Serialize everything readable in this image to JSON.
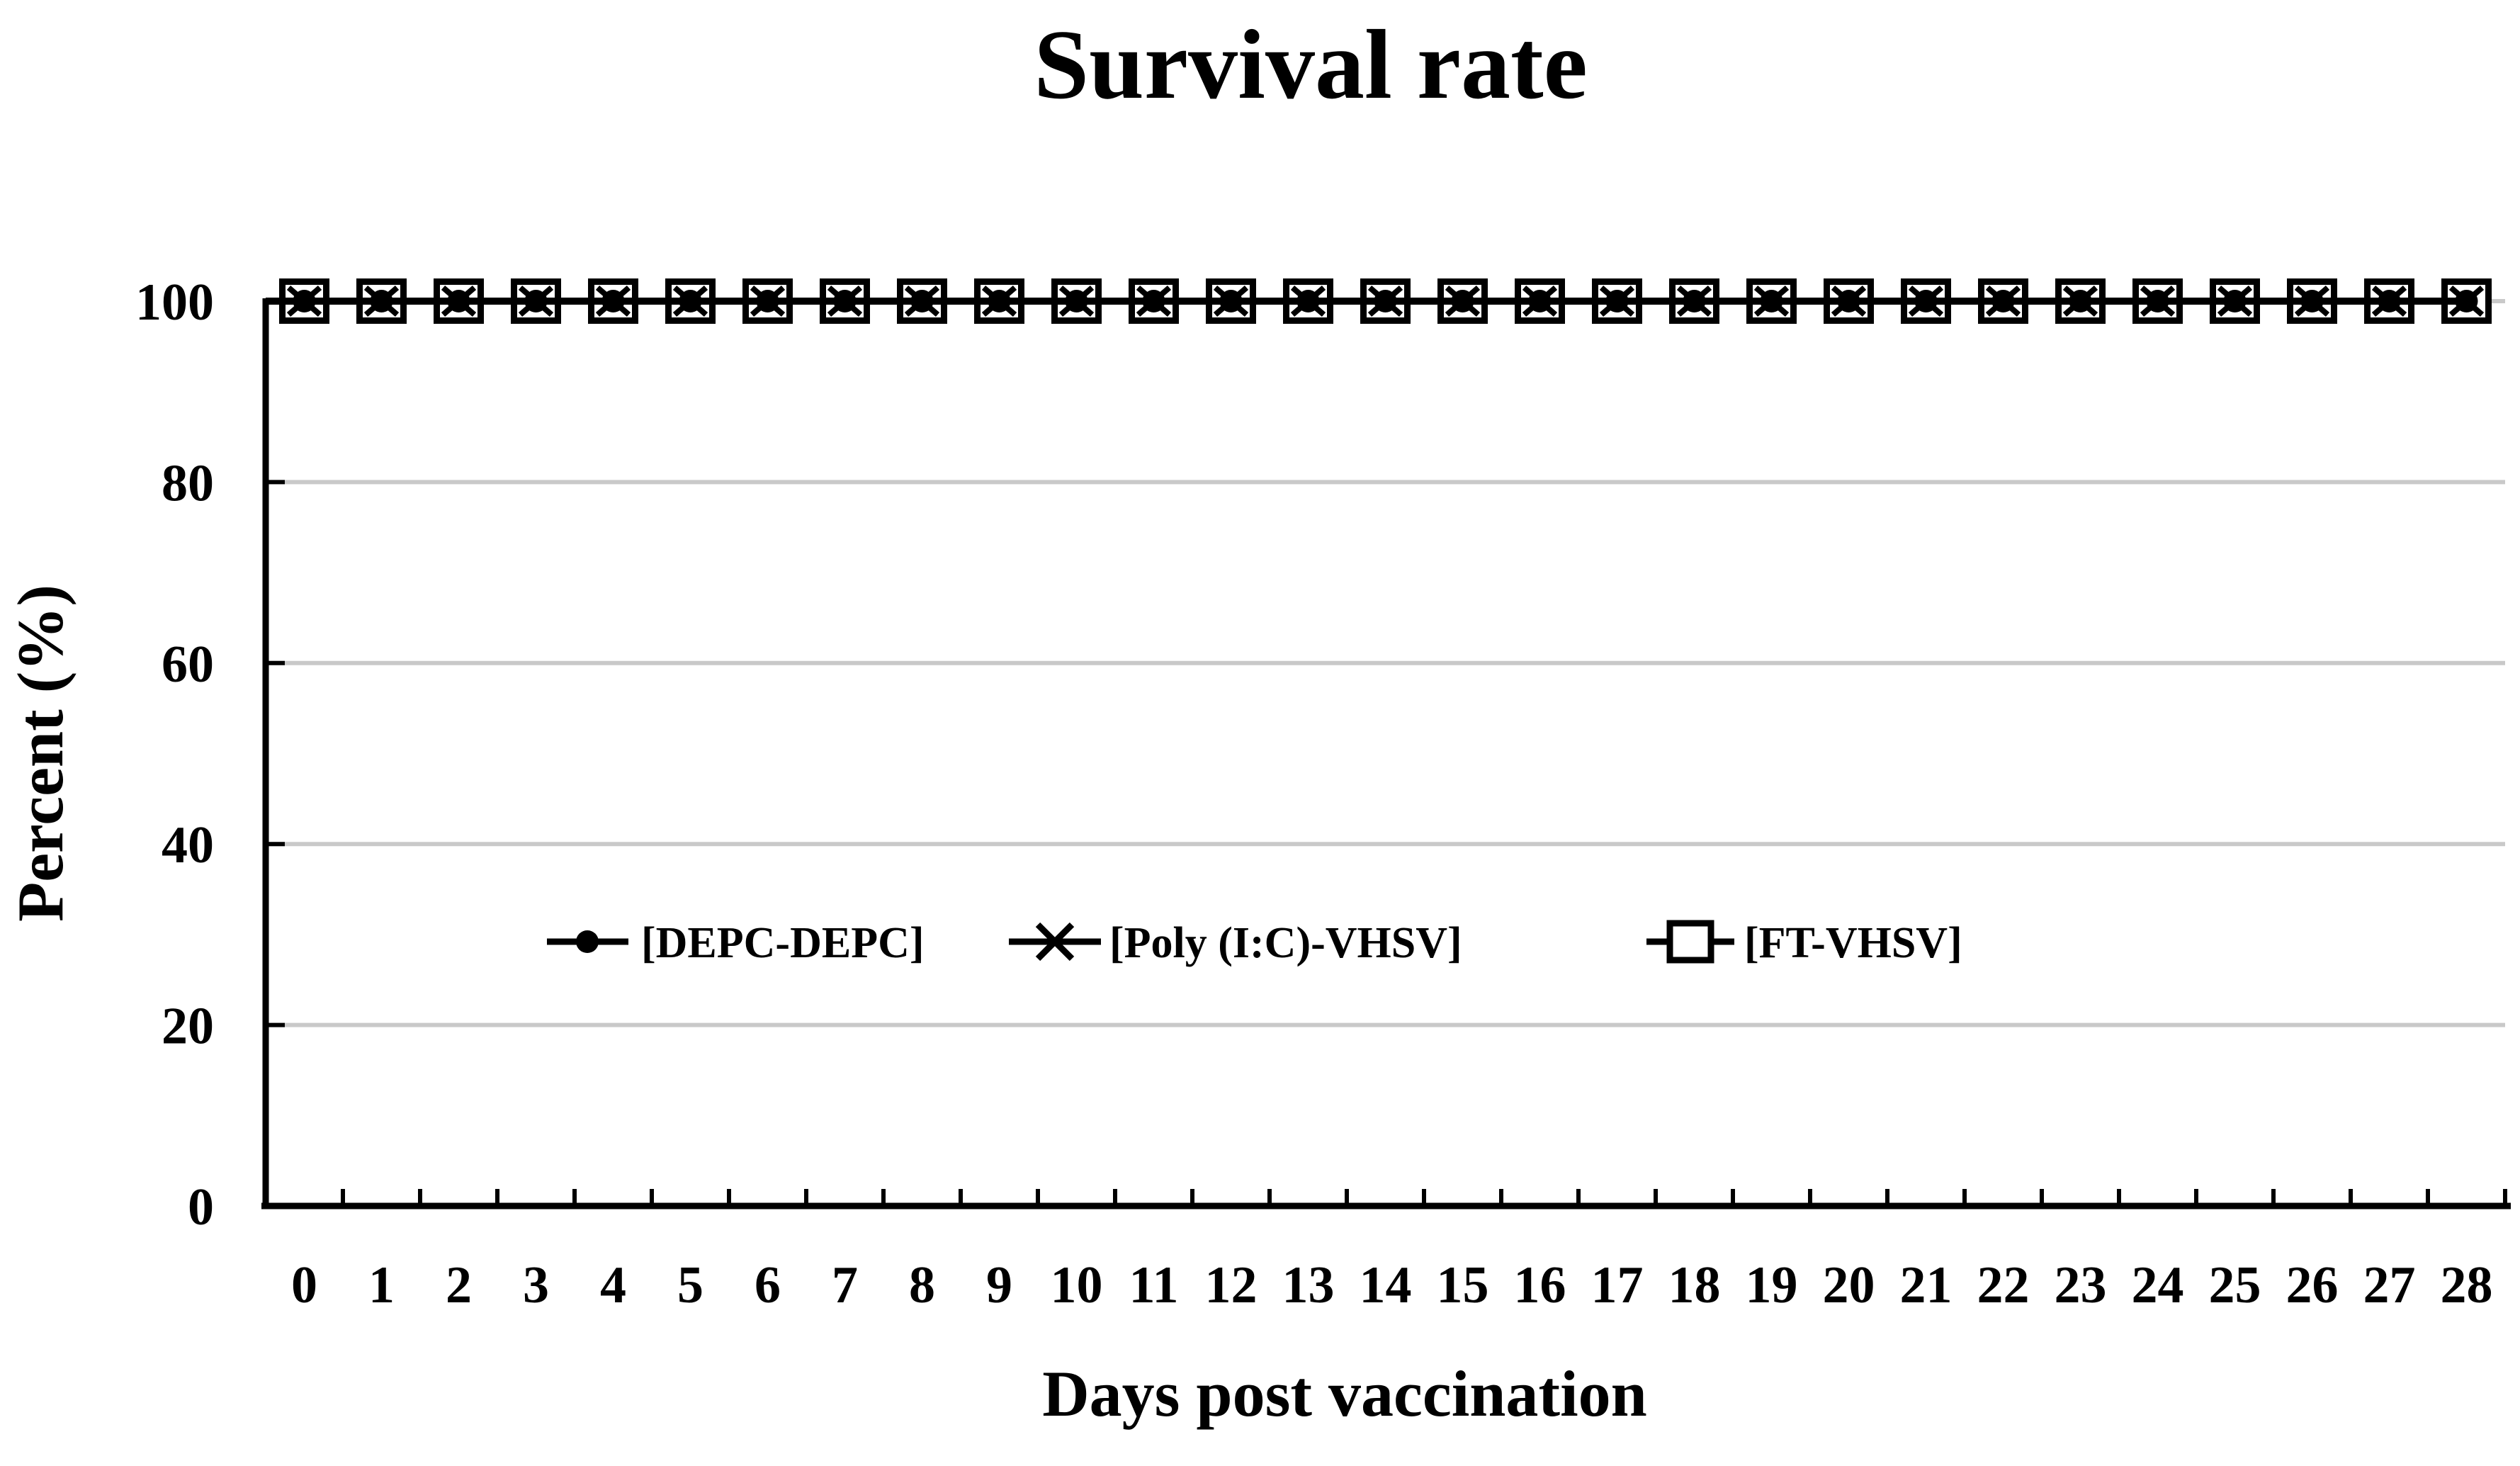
{
  "chart_data": {
    "type": "line",
    "title": "Survival rate",
    "xlabel": "Days post vaccination",
    "ylabel": "Percent (%)",
    "x": [
      0,
      1,
      2,
      3,
      4,
      5,
      6,
      7,
      8,
      9,
      10,
      11,
      12,
      13,
      14,
      15,
      16,
      17,
      18,
      19,
      20,
      21,
      22,
      23,
      24,
      25,
      26,
      27,
      28
    ],
    "x_tick_labels": [
      "0",
      "1",
      "2",
      "3",
      "4",
      "5",
      "6",
      "7",
      "8",
      "9",
      "10",
      "11",
      "12",
      "13",
      "14",
      "15",
      "16",
      "17",
      "18",
      "19",
      "20",
      "21",
      "22",
      "23",
      "24",
      "25",
      "26",
      "27",
      "28"
    ],
    "y_ticks": [
      0,
      20,
      40,
      60,
      80,
      100
    ],
    "y_tick_labels": [
      "0",
      "20",
      "40",
      "60",
      "80",
      "100"
    ],
    "ylim": [
      0,
      100
    ],
    "grid": "horizontal-gridlines-on",
    "legend_position": "inside-plot-left-center",
    "series": [
      {
        "name": "[DEPC-DEPC]",
        "marker": "filled-circle",
        "values": [
          100,
          100,
          100,
          100,
          100,
          100,
          100,
          100,
          100,
          100,
          100,
          100,
          100,
          100,
          100,
          100,
          100,
          100,
          100,
          100,
          100,
          100,
          100,
          100,
          100,
          100,
          100,
          100,
          100
        ]
      },
      {
        "name": "[Poly (I:C)-VHSV]",
        "marker": "x-cross",
        "values": [
          100,
          100,
          100,
          100,
          100,
          100,
          100,
          100,
          100,
          100,
          100,
          100,
          100,
          100,
          100,
          100,
          100,
          100,
          100,
          100,
          100,
          100,
          100,
          100,
          100,
          100,
          100,
          100,
          100
        ]
      },
      {
        "name": "[FT-VHSV]",
        "marker": "open-square",
        "values": [
          100,
          100,
          100,
          100,
          100,
          100,
          100,
          100,
          100,
          100,
          100,
          100,
          100,
          100,
          100,
          100,
          100,
          100,
          100,
          100,
          100,
          100,
          100,
          100,
          100,
          100,
          100,
          100,
          100
        ]
      }
    ],
    "colors": {
      "line": "#000000",
      "marker": "#000000",
      "marker_fill": "#ffffff",
      "text": "#000000",
      "gridline": "#c9c9c9",
      "axis": "#000000",
      "background": "#ffffff"
    }
  }
}
